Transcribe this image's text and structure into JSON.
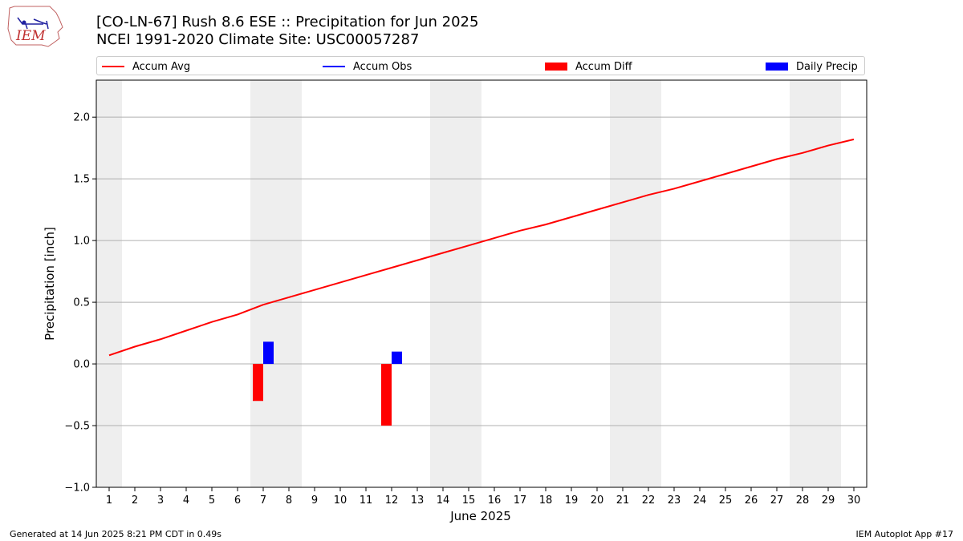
{
  "header": {
    "title_line1": "[CO-LN-67] Rush 8.6 ESE :: Precipitation for Jun 2025",
    "title_line2": "NCEI 1991-2020 Climate Site: USC00057287",
    "logo_text": "IEM"
  },
  "footer": {
    "generated": "Generated at 14 Jun 2025 8:21 PM CDT in 0.49s",
    "app": "IEM Autoplot App #17"
  },
  "colors": {
    "avg": "#ff0000",
    "obs": "#0000ff",
    "diff": "#ff0000",
    "daily": "#0000ff",
    "weekend": "#eeeeee",
    "grid": "#b0b0b0"
  },
  "chart_data": {
    "type": "bar",
    "title": "[CO-LN-67] Rush 8.6 ESE :: Precipitation for Jun 2025",
    "subtitle": "NCEI 1991-2020 Climate Site: USC00057287",
    "xlabel": "June 2025",
    "ylabel": "Precipitation [inch]",
    "ylim": [
      -1.0,
      2.3
    ],
    "yticks": [
      "−1.0",
      "−0.5",
      "0.0",
      "0.5",
      "1.0",
      "1.5",
      "2.0"
    ],
    "ytick_values": [
      -1.0,
      -0.5,
      0.0,
      0.5,
      1.0,
      1.5,
      2.0
    ],
    "x": [
      1,
      2,
      3,
      4,
      5,
      6,
      7,
      8,
      9,
      10,
      11,
      12,
      13,
      14,
      15,
      16,
      17,
      18,
      19,
      20,
      21,
      22,
      23,
      24,
      25,
      26,
      27,
      28,
      29,
      30
    ],
    "legend": [
      "Accum Avg",
      "Accum Obs",
      "Accum Diff",
      "Daily Precip"
    ],
    "legend_position": "top",
    "grid": "horizontal",
    "weekend_days": [
      1,
      7,
      8,
      14,
      15,
      21,
      22,
      28,
      29
    ],
    "accum_avg": [
      0.07,
      0.14,
      0.2,
      0.27,
      0.34,
      0.4,
      0.48,
      0.54,
      0.6,
      0.66,
      0.72,
      0.78,
      0.84,
      0.9,
      0.96,
      1.02,
      1.08,
      1.13,
      1.19,
      1.25,
      1.31,
      1.37,
      1.42,
      1.48,
      1.54,
      1.6,
      1.66,
      1.71,
      1.77,
      1.82
    ],
    "accum_diff": [
      {
        "day": 7,
        "value": -0.3
      },
      {
        "day": 12,
        "value": -0.5
      }
    ],
    "daily_precip": [
      {
        "day": 7,
        "value": 0.18
      },
      {
        "day": 12,
        "value": 0.1
      }
    ]
  }
}
